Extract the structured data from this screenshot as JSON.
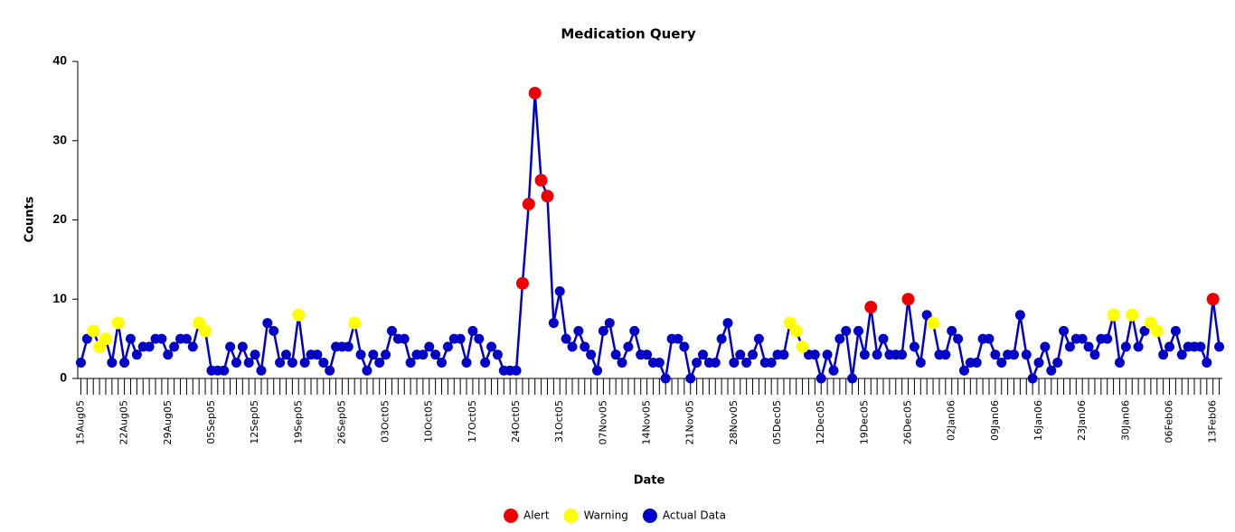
{
  "chart_data": {
    "type": "line",
    "title": "Medication Query",
    "x_label": "Date",
    "y_label": "Counts",
    "ylim": [
      0,
      40
    ],
    "yticks": [
      0,
      10,
      20,
      30,
      40
    ],
    "categories": [
      "15Aug05",
      null,
      null,
      null,
      null,
      null,
      null,
      "22Aug05",
      null,
      null,
      null,
      null,
      null,
      null,
      "29Aug05",
      null,
      null,
      null,
      null,
      null,
      null,
      "05Sep05",
      null,
      null,
      null,
      null,
      null,
      null,
      "12Sep05",
      null,
      null,
      null,
      null,
      null,
      null,
      "19Sep05",
      null,
      null,
      null,
      null,
      null,
      null,
      "26Sep05",
      null,
      null,
      null,
      null,
      null,
      null,
      "03Oct05",
      null,
      null,
      null,
      null,
      null,
      null,
      "10Oct05",
      null,
      null,
      null,
      null,
      null,
      null,
      "17Oct05",
      null,
      null,
      null,
      null,
      null,
      null,
      "24Oct05",
      null,
      null,
      null,
      null,
      null,
      null,
      "31Oct05",
      null,
      null,
      null,
      null,
      null,
      null,
      "07Nov05",
      null,
      null,
      null,
      null,
      null,
      null,
      "14Nov05",
      null,
      null,
      null,
      null,
      null,
      null,
      "21Nov05",
      null,
      null,
      null,
      null,
      null,
      null,
      "28Nov05",
      null,
      null,
      null,
      null,
      null,
      null,
      "05Dec05",
      null,
      null,
      null,
      null,
      null,
      null,
      "12Dec05",
      null,
      null,
      null,
      null,
      null,
      null,
      "19Dec05",
      null,
      null,
      null,
      null,
      null,
      null,
      "26Dec05",
      null,
      null,
      null,
      null,
      null,
      null,
      "02Jan06",
      null,
      null,
      null,
      null,
      null,
      null,
      "09Jan06",
      null,
      null,
      null,
      null,
      null,
      null,
      "16Jan06",
      null,
      null,
      null,
      null,
      null,
      null,
      "23Jan06",
      null,
      null,
      null,
      null,
      null,
      null,
      "30Jan06",
      null,
      null,
      null,
      null,
      null,
      null,
      "06Feb06",
      null,
      null,
      null,
      null,
      null,
      null,
      "13Feb06",
      null
    ],
    "series": [
      {
        "name": "Actual Data",
        "color": "#0000c8",
        "style": "line",
        "values": [
          2,
          5,
          6,
          4,
          5,
          2,
          7,
          2,
          5,
          3,
          4,
          4,
          5,
          5,
          3,
          4,
          5,
          5,
          4,
          7,
          6,
          1,
          1,
          1,
          4,
          2,
          4,
          2,
          3,
          1,
          7,
          6,
          2,
          3,
          2,
          8,
          2,
          3,
          3,
          2,
          1,
          4,
          4,
          4,
          7,
          3,
          1,
          3,
          2,
          3,
          6,
          5,
          5,
          2,
          3,
          3,
          4,
          3,
          2,
          4,
          5,
          5,
          2,
          6,
          5,
          2,
          4,
          3,
          1,
          1,
          1,
          12,
          22,
          36,
          25,
          23,
          7,
          11,
          5,
          4,
          6,
          4,
          3,
          1,
          6,
          7,
          3,
          2,
          4,
          6,
          3,
          3,
          2,
          2,
          0,
          5,
          5,
          4,
          0,
          2,
          3,
          2,
          2,
          5,
          7,
          2,
          3,
          2,
          3,
          5,
          2,
          2,
          3,
          3,
          7,
          6,
          4,
          3,
          3,
          0,
          3,
          1,
          5,
          6,
          0,
          6,
          3,
          9,
          3,
          5,
          3,
          3,
          3,
          10,
          4,
          2,
          8,
          7,
          3,
          3,
          6,
          5,
          1,
          2,
          2,
          5,
          5,
          3,
          2,
          3,
          3,
          8,
          3,
          0,
          2,
          4,
          1,
          2,
          6,
          4,
          5,
          5,
          4,
          3,
          5,
          5,
          8,
          2,
          4,
          8,
          4,
          6,
          7,
          6,
          3,
          4,
          6,
          3,
          4,
          4,
          4,
          2,
          10,
          4
        ]
      },
      {
        "name": "Alert",
        "color": "#ee0000",
        "style": "points",
        "values": [
          null,
          null,
          null,
          null,
          null,
          null,
          null,
          null,
          null,
          null,
          null,
          null,
          null,
          null,
          null,
          null,
          null,
          null,
          null,
          null,
          null,
          null,
          null,
          null,
          null,
          null,
          null,
          null,
          null,
          null,
          null,
          null,
          null,
          null,
          null,
          null,
          null,
          null,
          null,
          null,
          null,
          null,
          null,
          null,
          null,
          null,
          null,
          null,
          null,
          null,
          null,
          null,
          null,
          null,
          null,
          null,
          null,
          null,
          null,
          null,
          null,
          null,
          null,
          null,
          null,
          null,
          null,
          null,
          null,
          null,
          null,
          12,
          22,
          36,
          25,
          23,
          null,
          null,
          null,
          null,
          null,
          null,
          null,
          null,
          null,
          null,
          null,
          null,
          null,
          null,
          null,
          null,
          null,
          null,
          null,
          null,
          null,
          null,
          null,
          null,
          null,
          null,
          null,
          null,
          null,
          null,
          null,
          null,
          null,
          null,
          null,
          null,
          null,
          null,
          null,
          null,
          null,
          null,
          null,
          null,
          null,
          null,
          null,
          null,
          null,
          null,
          null,
          9,
          null,
          null,
          null,
          null,
          null,
          10,
          null,
          null,
          null,
          null,
          null,
          null,
          null,
          null,
          null,
          null,
          null,
          null,
          null,
          null,
          null,
          null,
          null,
          null,
          null,
          null,
          null,
          null,
          null,
          null,
          null,
          null,
          null,
          null,
          null,
          null,
          null,
          null,
          null,
          null,
          null,
          null,
          null,
          null,
          null,
          null,
          null,
          null,
          null,
          null,
          null,
          null,
          null,
          null,
          10,
          null
        ]
      },
      {
        "name": "Warning",
        "color": "#ffff00",
        "style": "points",
        "values": [
          null,
          null,
          6,
          4,
          5,
          null,
          7,
          null,
          null,
          null,
          null,
          null,
          null,
          null,
          null,
          null,
          null,
          null,
          null,
          7,
          6,
          null,
          null,
          null,
          null,
          null,
          null,
          null,
          null,
          null,
          null,
          null,
          null,
          null,
          null,
          8,
          null,
          null,
          null,
          null,
          null,
          null,
          null,
          null,
          7,
          null,
          null,
          null,
          null,
          null,
          null,
          null,
          null,
          null,
          null,
          null,
          null,
          null,
          null,
          null,
          null,
          null,
          null,
          null,
          null,
          null,
          null,
          null,
          null,
          null,
          null,
          null,
          null,
          null,
          null,
          null,
          null,
          null,
          null,
          null,
          null,
          null,
          null,
          null,
          null,
          null,
          null,
          null,
          null,
          null,
          null,
          null,
          null,
          null,
          null,
          null,
          null,
          null,
          null,
          null,
          null,
          null,
          null,
          null,
          null,
          null,
          null,
          null,
          null,
          null,
          null,
          null,
          null,
          null,
          7,
          6,
          4,
          null,
          null,
          null,
          null,
          null,
          null,
          null,
          null,
          null,
          null,
          null,
          null,
          null,
          null,
          null,
          null,
          null,
          null,
          null,
          null,
          7,
          null,
          null,
          null,
          null,
          null,
          null,
          null,
          null,
          null,
          null,
          null,
          null,
          null,
          null,
          null,
          null,
          null,
          null,
          null,
          null,
          null,
          null,
          null,
          null,
          null,
          null,
          null,
          null,
          8,
          null,
          null,
          8,
          null,
          null,
          7,
          6,
          null,
          null,
          null,
          null,
          null,
          null,
          null,
          null,
          null,
          null
        ]
      }
    ],
    "legend_order": [
      "Alert",
      "Warning",
      "Actual Data"
    ],
    "legend": "bottom"
  }
}
